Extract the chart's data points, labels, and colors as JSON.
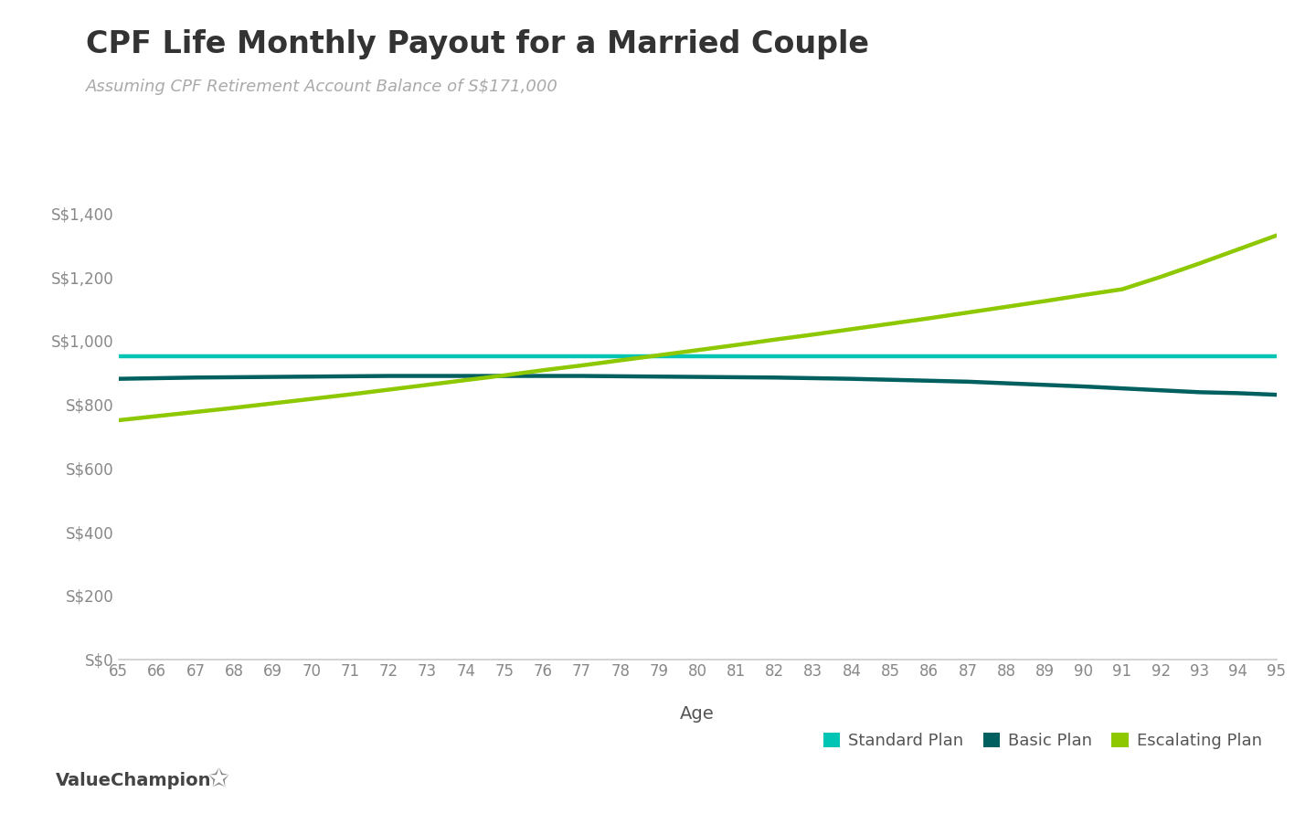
{
  "title": "CPF Life Monthly Payout for a Married Couple",
  "subtitle": "Assuming CPF Retirement Account Balance of S$171,000",
  "xlabel": "Age",
  "ages": [
    65,
    66,
    67,
    68,
    69,
    70,
    71,
    72,
    73,
    74,
    75,
    76,
    77,
    78,
    79,
    80,
    81,
    82,
    83,
    84,
    85,
    86,
    87,
    88,
    89,
    90,
    91,
    92,
    93,
    94,
    95
  ],
  "standard_plan": [
    950,
    950,
    950,
    950,
    950,
    950,
    950,
    950,
    950,
    950,
    950,
    950,
    950,
    950,
    950,
    950,
    950,
    950,
    950,
    950,
    950,
    950,
    950,
    950,
    950,
    950,
    950,
    950,
    950,
    950,
    950
  ],
  "basic_plan": [
    880,
    882,
    884,
    885,
    886,
    887,
    888,
    889,
    889,
    889,
    889,
    889,
    889,
    888,
    887,
    886,
    885,
    884,
    882,
    880,
    877,
    874,
    871,
    866,
    861,
    856,
    850,
    844,
    838,
    835,
    830
  ],
  "escalating_plan": [
    750,
    763,
    776,
    789,
    803,
    817,
    831,
    846,
    861,
    876,
    891,
    907,
    922,
    938,
    954,
    970,
    986,
    1003,
    1019,
    1036,
    1053,
    1070,
    1088,
    1106,
    1124,
    1143,
    1161,
    1200,
    1242,
    1286,
    1330
  ],
  "standard_color": "#00C5B5",
  "basic_color": "#005F5F",
  "escalating_color": "#8DC800",
  "background_color": "#FFFFFF",
  "title_color": "#333333",
  "subtitle_color": "#AAAAAA",
  "axis_color": "#555555",
  "tick_color": "#888888",
  "bottom_spine_color": "#CCCCCC",
  "ylim": [
    0,
    1500
  ],
  "yticks": [
    0,
    200,
    400,
    600,
    800,
    1000,
    1200,
    1400
  ],
  "ytick_labels": [
    "S$0",
    "S$200",
    "S$400",
    "S$600",
    "S$800",
    "S$1,000",
    "S$1,200",
    "S$1,400"
  ],
  "line_width": 3.2,
  "legend_labels": [
    "Standard Plan",
    "Basic Plan",
    "Escalating Plan"
  ],
  "logo_text": "ValueChampion",
  "title_fontsize": 24,
  "subtitle_fontsize": 13,
  "axis_label_fontsize": 14,
  "tick_fontsize": 12,
  "legend_fontsize": 13
}
